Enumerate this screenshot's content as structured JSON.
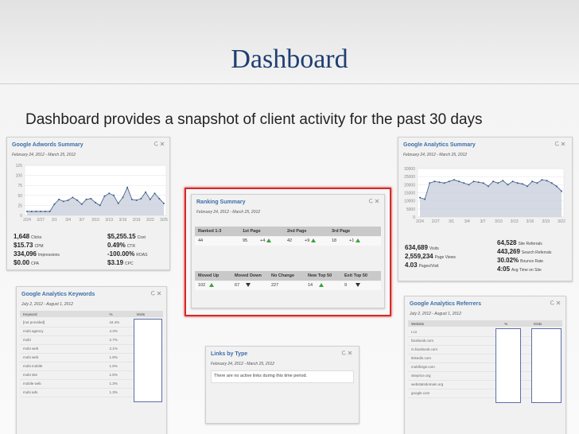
{
  "title": "Dashboard",
  "subtitle": "Dashboard provides a snapshot of client activity for the past 30 days",
  "adwords": {
    "title": "Google Adwords Summary",
    "date": "February 24, 2012 - March 25, 2012",
    "chart": {
      "type": "line",
      "ylim": [
        0,
        125
      ],
      "yticks": [
        0,
        25,
        50,
        75,
        100,
        125
      ],
      "grid": true,
      "color": "#3b5a8a",
      "xlabels": [
        "2/24",
        "2/27",
        "3/1",
        "3/4",
        "3/7",
        "3/10",
        "3/13",
        "3/16",
        "3/19",
        "3/22",
        "3/25"
      ],
      "values": [
        10,
        10,
        10,
        10,
        10,
        10,
        28,
        40,
        35,
        38,
        45,
        38,
        28,
        40,
        42,
        32,
        25,
        48,
        55,
        50,
        30,
        45,
        70,
        40,
        38,
        42,
        58,
        40,
        55,
        42,
        30
      ]
    },
    "stats_left": [
      {
        "value": "1,648",
        "label": "Clicks"
      },
      {
        "value": "$15.73",
        "label": "CPM"
      },
      {
        "value": "334,096",
        "label": "Impressions"
      },
      {
        "value": "$0.00",
        "label": "CPA"
      }
    ],
    "stats_right": [
      {
        "value": "$5,255.15",
        "label": "Cost"
      },
      {
        "value": "0.49%",
        "label": "CTR"
      },
      {
        "value": "-100.00%",
        "label": "ROAS"
      },
      {
        "value": "$3.19",
        "label": "CPC"
      }
    ]
  },
  "analytics": {
    "title": "Google Analytics Summary",
    "date": "February 24, 2012 - March 25, 2012",
    "chart": {
      "type": "line",
      "ylim": [
        0,
        30000
      ],
      "yticks": [
        0,
        5000,
        10000,
        15000,
        20000,
        25000,
        30000
      ],
      "grid": true,
      "color": "#3b5a8a",
      "xlabels": [
        "2/24",
        "2/27",
        "3/1",
        "3/4",
        "3/7",
        "3/10",
        "3/13",
        "3/16",
        "3/19",
        "3/22"
      ],
      "values": [
        12000,
        11000,
        21000,
        22000,
        21500,
        21000,
        22000,
        23000,
        22000,
        21000,
        20000,
        22000,
        21500,
        21000,
        19000,
        22000,
        21000,
        22500,
        20000,
        22000,
        21000,
        20500,
        19000,
        22000,
        21000,
        23000,
        22500,
        21000,
        19000,
        16000
      ]
    },
    "stats_left": [
      {
        "value": "634,689",
        "label": "Visits"
      },
      {
        "value": "2,559,234",
        "label": "Page Views"
      },
      {
        "value": "4.03",
        "label": "Pages/Visit"
      }
    ],
    "stats_right": [
      {
        "value": "64,528",
        "label": "Site Referrals"
      },
      {
        "value": "443,269",
        "label": "Search Referrals"
      },
      {
        "value": "30.02%",
        "label": "Bounce Rate"
      },
      {
        "value": "4:05",
        "label": "Avg Time on Site"
      }
    ]
  },
  "ranking": {
    "title": "Ranking Summary",
    "date": "February 24, 2012 - March 25, 2012",
    "table1": {
      "headers": [
        "Ranked 1-3",
        "1st Page",
        "2nd Page",
        "3rd Page"
      ],
      "row": [
        {
          "value": "44"
        },
        {
          "value": "95",
          "change": "+4",
          "trend": "up"
        },
        {
          "value": "42",
          "change": "+9",
          "trend": "up"
        },
        {
          "value": "18",
          "change": "+1",
          "trend": "up"
        }
      ]
    },
    "table2": {
      "headers": [
        "Moved Up",
        "Moved Down",
        "No Change",
        "New Top 50",
        "Exit Top 50"
      ],
      "row": [
        {
          "value": "102",
          "trend": "up"
        },
        {
          "value": "67",
          "trend": "down"
        },
        {
          "value": "227"
        },
        {
          "value": "14",
          "trend": "up"
        },
        {
          "value": "9",
          "trend": "down"
        }
      ]
    }
  },
  "keywords": {
    "title": "Google Analytics Keywords",
    "date": "July 2, 2012 - August 1, 2012",
    "headers": [
      "Keyword",
      "%",
      "Visits"
    ],
    "rows": [
      [
        "[not provided]",
        "44.4%"
      ],
      [
        "mobi agency",
        "4.3%"
      ],
      [
        "mobi",
        "2.7%"
      ],
      [
        "mobi web",
        "2.1%"
      ],
      [
        "mobi web",
        "1.8%"
      ],
      [
        "mobi mobile",
        "1.6%"
      ],
      [
        "mobi site",
        "1.5%"
      ],
      [
        "mobile web",
        "1.3%"
      ],
      [
        "mobi ads",
        "1.3%"
      ]
    ]
  },
  "links": {
    "title": "Links by Type",
    "date": "February 24, 2012 - March 25, 2012",
    "message": "There are no active links during this time period."
  },
  "referrers": {
    "title": "Google Analytics Referrers",
    "date": "July 2, 2012 - August 1, 2012",
    "headers": [
      "Website",
      "%",
      "Visits"
    ],
    "rows": [
      "t.co",
      "facebook.com",
      "m.facebook.com",
      "linkedin.com",
      "mobiforge.com",
      "siteprice.org",
      "webstatsdomain.org",
      "google.com"
    ]
  }
}
